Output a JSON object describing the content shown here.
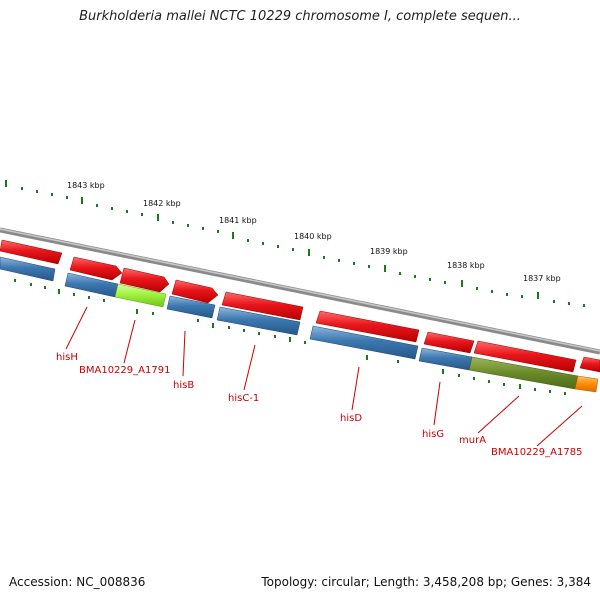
{
  "map": {
    "title": "Burkholderia mallei NCTC 10229 chromosome I, complete sequen...",
    "accession": "Accession: NC_008836",
    "topology": "Topology: circular; Length: 3,458,208 bp; Genes: 3,384"
  },
  "colors": {
    "forward_gene": "#e8161c",
    "reverse_gene": "#3c78b0",
    "highlight_gene": "#9bf03a",
    "olive_gene": "#6b8a2a",
    "orange_gene": "#ff8c00",
    "tick": "#1a7a1a",
    "label": "#cc0000",
    "backbone": "#8a8a8a"
  },
  "scale": {
    "ticks": [
      {
        "label": "1843 kbp"
      },
      {
        "label": "1842 kbp"
      },
      {
        "label": "1841 kbp"
      },
      {
        "label": "1840 kbp"
      },
      {
        "label": "1839 kbp"
      },
      {
        "label": "1838 kbp"
      },
      {
        "label": "1837 kbp"
      }
    ]
  },
  "genes": [
    {
      "name": "hisH",
      "strand": "reverse"
    },
    {
      "name": "BMA10229_A1791",
      "strand": "reverse"
    },
    {
      "name": "hisB",
      "strand": "reverse"
    },
    {
      "name": "hisC-1",
      "strand": "reverse"
    },
    {
      "name": "hisD",
      "strand": "reverse"
    },
    {
      "name": "hisG",
      "strand": "reverse"
    },
    {
      "name": "murA",
      "strand": "reverse"
    },
    {
      "name": "BMA10229_A1785",
      "strand": "reverse"
    }
  ]
}
